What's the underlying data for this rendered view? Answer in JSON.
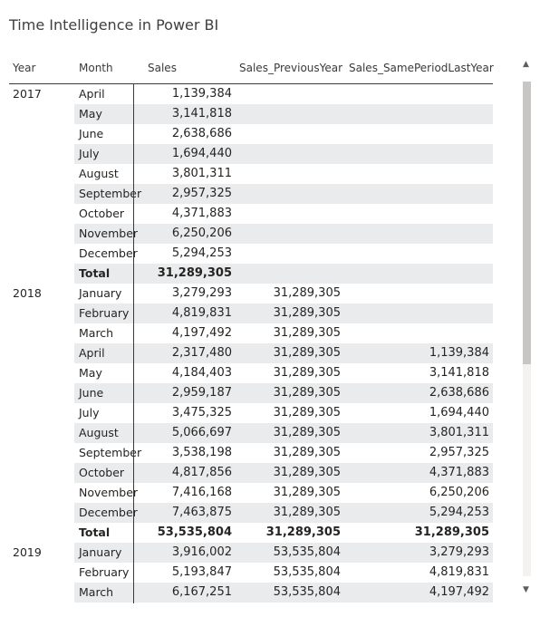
{
  "title": "Time Intelligence in Power BI",
  "columns": {
    "year": "Year",
    "month": "Month",
    "sales": "Sales",
    "prev": "Sales_PreviousYear",
    "same": "Sales_SamePeriodLastYear"
  },
  "rows": [
    {
      "year": "2017",
      "month": "April",
      "sales": "1,139,384",
      "prev": "",
      "same": ""
    },
    {
      "year": "",
      "month": "May",
      "sales": "3,141,818",
      "prev": "",
      "same": ""
    },
    {
      "year": "",
      "month": "June",
      "sales": "2,638,686",
      "prev": "",
      "same": ""
    },
    {
      "year": "",
      "month": "July",
      "sales": "1,694,440",
      "prev": "",
      "same": ""
    },
    {
      "year": "",
      "month": "August",
      "sales": "3,801,311",
      "prev": "",
      "same": ""
    },
    {
      "year": "",
      "month": "September",
      "sales": "2,957,325",
      "prev": "",
      "same": ""
    },
    {
      "year": "",
      "month": "October",
      "sales": "4,371,883",
      "prev": "",
      "same": ""
    },
    {
      "year": "",
      "month": "November",
      "sales": "6,250,206",
      "prev": "",
      "same": ""
    },
    {
      "year": "",
      "month": "December",
      "sales": "5,294,253",
      "prev": "",
      "same": ""
    },
    {
      "year": "",
      "month": "Total",
      "sales": "31,289,305",
      "prev": "",
      "same": "",
      "total": true
    },
    {
      "year": "2018",
      "month": "January",
      "sales": "3,279,293",
      "prev": "31,289,305",
      "same": ""
    },
    {
      "year": "",
      "month": "February",
      "sales": "4,819,831",
      "prev": "31,289,305",
      "same": ""
    },
    {
      "year": "",
      "month": "March",
      "sales": "4,197,492",
      "prev": "31,289,305",
      "same": ""
    },
    {
      "year": "",
      "month": "April",
      "sales": "2,317,480",
      "prev": "31,289,305",
      "same": "1,139,384"
    },
    {
      "year": "",
      "month": "May",
      "sales": "4,184,403",
      "prev": "31,289,305",
      "same": "3,141,818"
    },
    {
      "year": "",
      "month": "June",
      "sales": "2,959,187",
      "prev": "31,289,305",
      "same": "2,638,686"
    },
    {
      "year": "",
      "month": "July",
      "sales": "3,475,325",
      "prev": "31,289,305",
      "same": "1,694,440"
    },
    {
      "year": "",
      "month": "August",
      "sales": "5,066,697",
      "prev": "31,289,305",
      "same": "3,801,311"
    },
    {
      "year": "",
      "month": "September",
      "sales": "3,538,198",
      "prev": "31,289,305",
      "same": "2,957,325"
    },
    {
      "year": "",
      "month": "October",
      "sales": "4,817,856",
      "prev": "31,289,305",
      "same": "4,371,883"
    },
    {
      "year": "",
      "month": "November",
      "sales": "7,416,168",
      "prev": "31,289,305",
      "same": "6,250,206"
    },
    {
      "year": "",
      "month": "December",
      "sales": "7,463,875",
      "prev": "31,289,305",
      "same": "5,294,253"
    },
    {
      "year": "",
      "month": "Total",
      "sales": "53,535,804",
      "prev": "31,289,305",
      "same": "31,289,305",
      "total": true
    },
    {
      "year": "2019",
      "month": "January",
      "sales": "3,916,002",
      "prev": "53,535,804",
      "same": "3,279,293"
    },
    {
      "year": "",
      "month": "February",
      "sales": "5,193,847",
      "prev": "53,535,804",
      "same": "4,819,831"
    },
    {
      "year": "",
      "month": "March",
      "sales": "6,167,251",
      "prev": "53,535,804",
      "same": "4,197,492"
    }
  ],
  "icons": {
    "scroll_up": "chevron-up-icon",
    "scroll_down": "chevron-down-icon"
  },
  "colors": {
    "band": "#eaebec",
    "text": "#252423",
    "scroll_thumb": "#c8c6c4"
  }
}
